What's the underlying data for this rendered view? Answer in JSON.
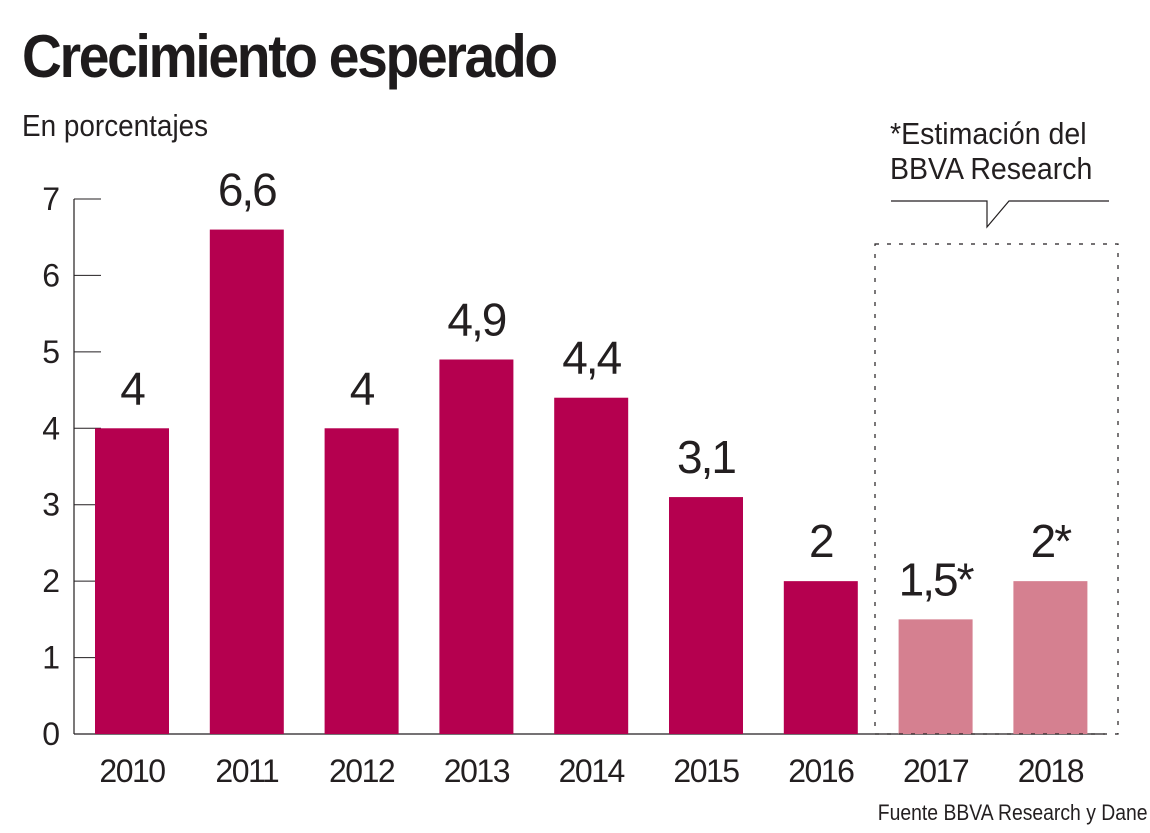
{
  "chart_data": {
    "type": "bar",
    "title": "Crecimiento esperado",
    "subtitle": "En porcentajes",
    "xlabel": "",
    "ylabel": "",
    "ylim": [
      0,
      7
    ],
    "yticks": [
      0,
      1,
      2,
      3,
      4,
      5,
      6,
      7
    ],
    "ytick_labels": [
      "0",
      "1",
      "2",
      "3",
      "4",
      "5",
      "6",
      "7"
    ],
    "grid": false,
    "categories": [
      "2010",
      "2011",
      "2012",
      "2013",
      "2014",
      "2015",
      "2016",
      "2017",
      "2018"
    ],
    "values": [
      4,
      6.6,
      4,
      4.9,
      4.4,
      3.1,
      2,
      1.5,
      2
    ],
    "data_labels": [
      "4",
      "6,6",
      "4",
      "4,9",
      "4,4",
      "3,1",
      "2",
      "1,5*",
      "2*"
    ],
    "estimated": [
      false,
      false,
      false,
      false,
      false,
      false,
      false,
      true,
      true
    ],
    "colors": {
      "actual": "#b5004f",
      "estimate": "#d58090",
      "text": "#231f20"
    },
    "annotation": {
      "line1": "*Estimación del",
      "line2": "BBVA Research",
      "applies_to": [
        "2017",
        "2018"
      ]
    },
    "source": "Fuente BBVA Research y Dane"
  }
}
